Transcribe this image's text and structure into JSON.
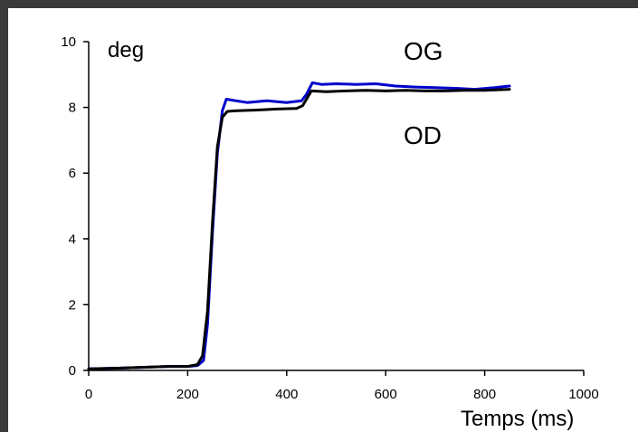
{
  "chart_data": {
    "type": "line",
    "title": "",
    "xlabel": "Temps (ms)",
    "ylabel": "deg",
    "xlim": [
      0,
      1000
    ],
    "ylim": [
      0,
      10
    ],
    "xticks": [
      0,
      200,
      400,
      600,
      800,
      1000
    ],
    "yticks": [
      0,
      2,
      4,
      6,
      8,
      10
    ],
    "grid": false,
    "series": [
      {
        "name": "OG",
        "color": "#0000cc",
        "x": [
          0,
          40,
          80,
          120,
          160,
          200,
          220,
          232,
          240,
          250,
          260,
          270,
          278,
          290,
          320,
          360,
          400,
          430,
          440,
          452,
          470,
          500,
          540,
          580,
          620,
          660,
          700,
          740,
          780,
          820,
          850
        ],
        "y": [
          0.05,
          0.06,
          0.08,
          0.1,
          0.12,
          0.12,
          0.15,
          0.3,
          1.4,
          4.2,
          6.6,
          7.9,
          8.25,
          8.22,
          8.15,
          8.2,
          8.15,
          8.2,
          8.4,
          8.75,
          8.7,
          8.72,
          8.7,
          8.72,
          8.65,
          8.62,
          8.6,
          8.58,
          8.55,
          8.6,
          8.65
        ]
      },
      {
        "name": "OD",
        "color": "#000000",
        "x": [
          0,
          40,
          80,
          120,
          160,
          200,
          220,
          230,
          240,
          250,
          260,
          270,
          280,
          300,
          340,
          380,
          420,
          432,
          440,
          450,
          480,
          520,
          560,
          600,
          640,
          680,
          720,
          760,
          800,
          850
        ],
        "y": [
          0.05,
          0.06,
          0.08,
          0.1,
          0.12,
          0.12,
          0.18,
          0.45,
          1.8,
          4.5,
          6.8,
          7.7,
          7.88,
          7.9,
          7.92,
          7.95,
          7.97,
          8.05,
          8.25,
          8.5,
          8.48,
          8.5,
          8.52,
          8.5,
          8.52,
          8.5,
          8.5,
          8.52,
          8.52,
          8.55
        ]
      }
    ]
  }
}
